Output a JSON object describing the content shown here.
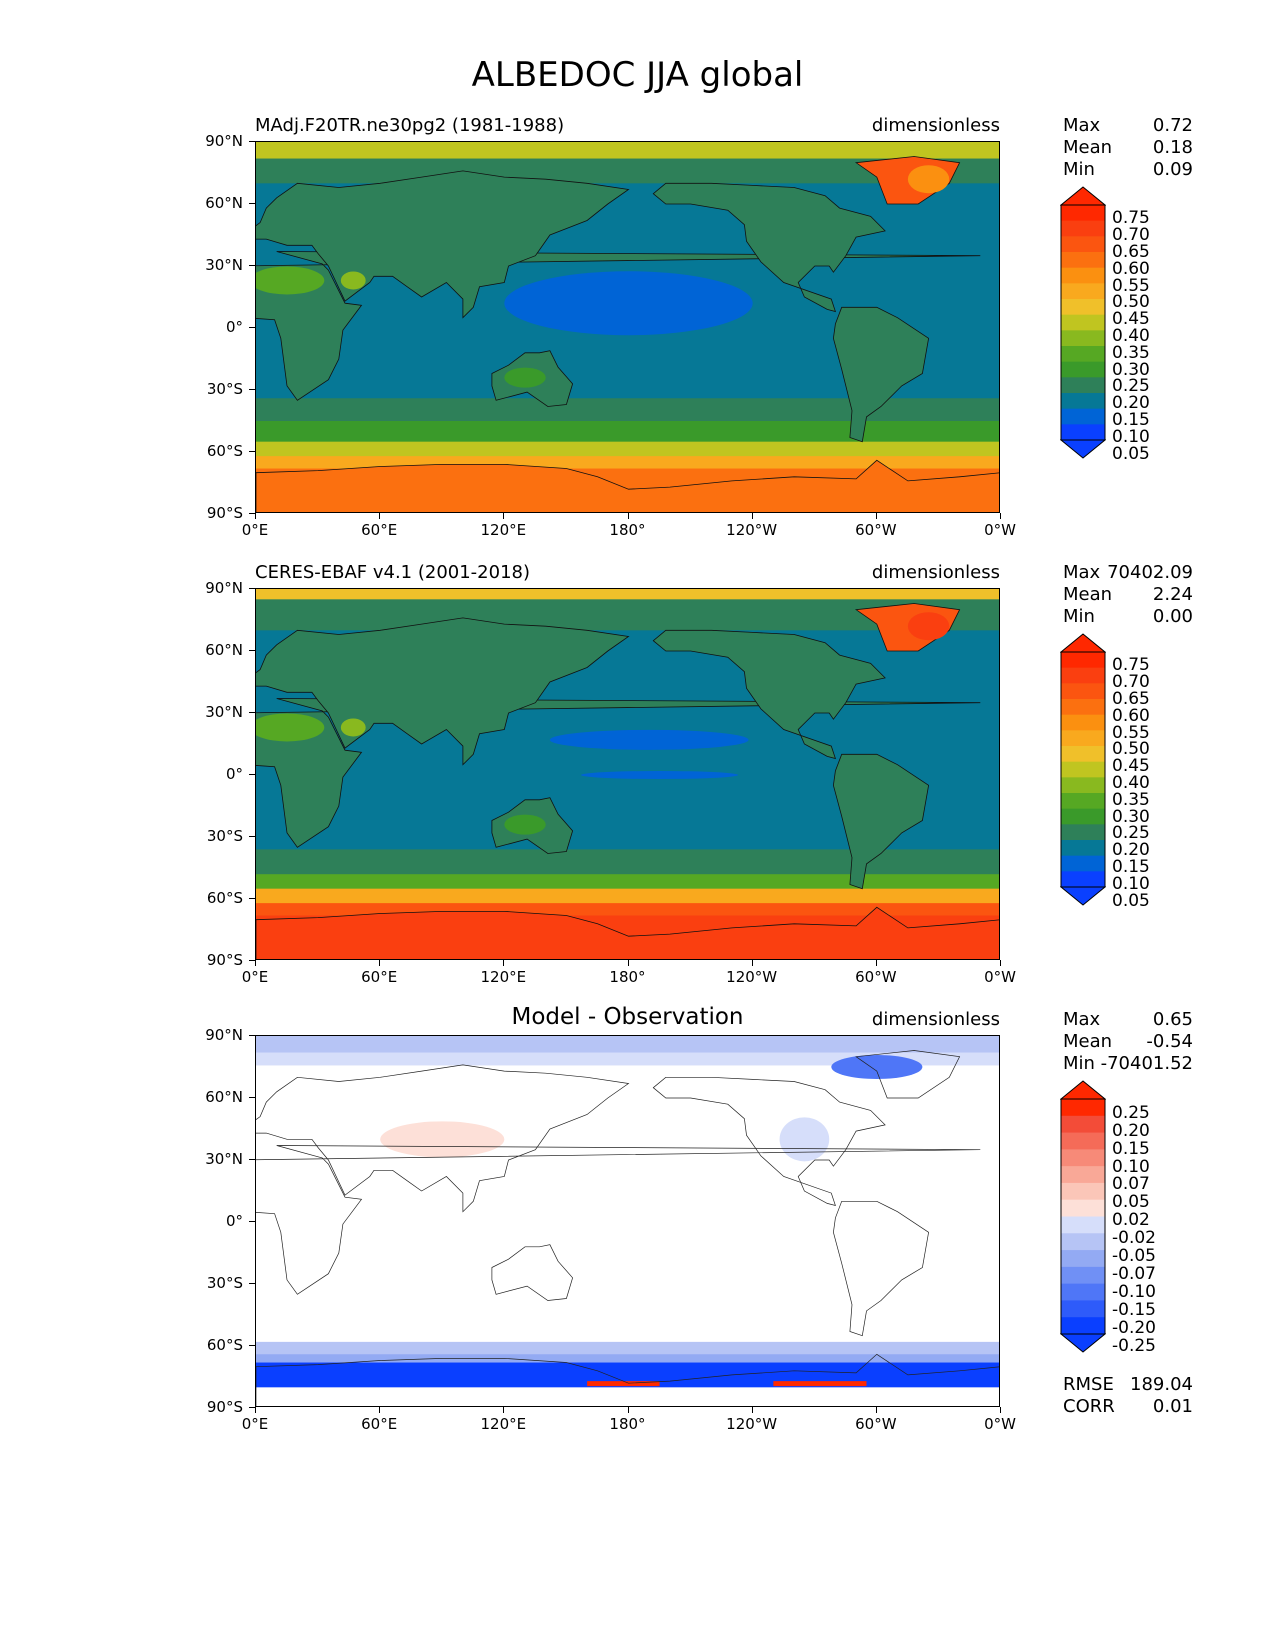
{
  "title": "ALBEDOC JJA global",
  "lat_ticks": [
    "90°N",
    "60°N",
    "30°N",
    "0°",
    "30°S",
    "60°S",
    "90°S"
  ],
  "lon_ticks": [
    "0°E",
    "60°E",
    "120°E",
    "180°",
    "120°W",
    "60°W",
    "0°W"
  ],
  "colors": {
    "abs_scale": [
      "#0a40ff",
      "#0064d6",
      "#067896",
      "#2e8059",
      "#3a9a2a",
      "#56a823",
      "#89b91f",
      "#c0c520",
      "#f0c02a",
      "#f9a91e",
      "#fb9010",
      "#fb7010",
      "#fb5510",
      "#fa3f10",
      "#ff2800"
    ],
    "diff_scale": [
      "#0a3fff",
      "#2e5bfa",
      "#4f76f7",
      "#7090f5",
      "#93aaf3",
      "#b6c4f5",
      "#d6defa",
      "#ffffff",
      "#fde0d8",
      "#fbc6b8",
      "#f9a897",
      "#f78a78",
      "#f56b58",
      "#f34c38",
      "#ff2800"
    ]
  },
  "panels": [
    {
      "left_title": "MAdj.F20TR.ne30pg2 (1981-1988)",
      "center_title": "",
      "units": "dimensionless",
      "stats": [
        {
          "label": "Max",
          "value": "0.72"
        },
        {
          "label": "Mean",
          "value": "0.18"
        },
        {
          "label": "Min",
          "value": "0.09"
        }
      ],
      "colorbar_labels": [
        "0.75",
        "0.70",
        "0.65",
        "0.60",
        "0.55",
        "0.50",
        "0.45",
        "0.40",
        "0.35",
        "0.30",
        "0.25",
        "0.20",
        "0.15",
        "0.10",
        "0.05"
      ],
      "extra_stats": []
    },
    {
      "left_title": "CERES-EBAF v4.1 (2001-2018)",
      "center_title": "",
      "units": "dimensionless",
      "stats": [
        {
          "label": "Max",
          "value": "70402.09"
        },
        {
          "label": "Mean",
          "value": "2.24"
        },
        {
          "label": "Min",
          "value": "0.00"
        }
      ],
      "colorbar_labels": [
        "0.75",
        "0.70",
        "0.65",
        "0.60",
        "0.55",
        "0.50",
        "0.45",
        "0.40",
        "0.35",
        "0.30",
        "0.25",
        "0.20",
        "0.15",
        "0.10",
        "0.05"
      ],
      "extra_stats": []
    },
    {
      "left_title": "",
      "center_title": "Model - Observation",
      "units": "dimensionless",
      "stats": [
        {
          "label": "Max",
          "value": "0.65"
        },
        {
          "label": "Mean",
          "value": "-0.54"
        },
        {
          "label": "Min",
          "value": "-70401.52"
        }
      ],
      "colorbar_labels": [
        "0.25",
        "0.20",
        "0.15",
        "0.10",
        "0.07",
        "0.05",
        "0.02",
        "-0.02",
        "-0.05",
        "-0.07",
        "-0.10",
        "-0.15",
        "-0.20",
        "-0.25"
      ],
      "extra_stats": [
        {
          "label": "RMSE",
          "value": "189.04"
        },
        {
          "label": "CORR",
          "value": "0.01"
        }
      ]
    }
  ]
}
